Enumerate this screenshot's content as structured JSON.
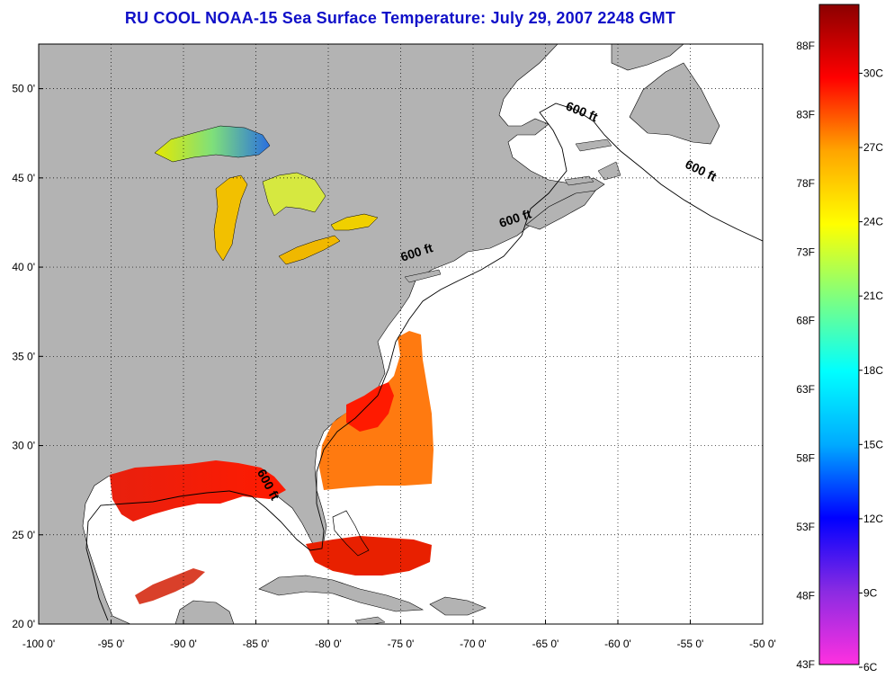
{
  "title": "RU COOL  NOAA-15  Sea Surface Temperature:  July 29, 2007 2248 GMT",
  "map": {
    "lon_range": [
      -100,
      -50
    ],
    "lat_range": [
      20,
      52.5
    ],
    "lon_ticks": [
      {
        "v": -100,
        "label": "-100 0'"
      },
      {
        "v": -95,
        "label": "-95 0'"
      },
      {
        "v": -90,
        "label": "-90 0'"
      },
      {
        "v": -85,
        "label": "-85 0'"
      },
      {
        "v": -80,
        "label": "-80 0'"
      },
      {
        "v": -75,
        "label": "-75 0'"
      },
      {
        "v": -70,
        "label": "-70 0'"
      },
      {
        "v": -65,
        "label": "-65 0'"
      },
      {
        "v": -60,
        "label": "-60 0'"
      },
      {
        "v": -55,
        "label": "-55 0'"
      },
      {
        "v": -50,
        "label": "-50 0'"
      }
    ],
    "lat_ticks": [
      {
        "v": 20,
        "label": "20 0'"
      },
      {
        "v": 25,
        "label": "25 0'"
      },
      {
        "v": 30,
        "label": "30 0'"
      },
      {
        "v": 35,
        "label": "35 0'"
      },
      {
        "v": 40,
        "label": "40 0'"
      },
      {
        "v": 45,
        "label": "45 0'"
      },
      {
        "v": 50,
        "label": "50 0'"
      }
    ],
    "isobath_labels": [
      {
        "text": "600 ft",
        "lon": -62.6,
        "lat": 48.5,
        "rot": 22
      },
      {
        "text": "600 ft",
        "lon": -54.4,
        "lat": 45.2,
        "rot": 26
      },
      {
        "text": "600 ft",
        "lon": -67.0,
        "lat": 42.5,
        "rot": -18
      },
      {
        "text": "600 ft",
        "lon": -73.8,
        "lat": 40.6,
        "rot": -18
      },
      {
        "text": "600 ft",
        "lon": -84.4,
        "lat": 27.7,
        "rot": 62
      }
    ],
    "colors": {
      "land": "#b3b3b3",
      "water": "#ffffff",
      "grid": "#000000",
      "title": "#1010c8"
    }
  },
  "colorbar": {
    "f_labels": [
      {
        "t": 43,
        "label": "43F"
      },
      {
        "t": 48,
        "label": "48F"
      },
      {
        "t": 53,
        "label": "53F"
      },
      {
        "t": 58,
        "label": "58F"
      },
      {
        "t": 63,
        "label": "63F"
      },
      {
        "t": 68,
        "label": "68F"
      },
      {
        "t": 73,
        "label": "73F"
      },
      {
        "t": 78,
        "label": "78F"
      },
      {
        "t": 83,
        "label": "83F"
      },
      {
        "t": 88,
        "label": "88F"
      }
    ],
    "c_labels": [
      {
        "t": 6,
        "label": "6C"
      },
      {
        "t": 9,
        "label": "9C"
      },
      {
        "t": 12,
        "label": "12C"
      },
      {
        "t": 15,
        "label": "15C"
      },
      {
        "t": 18,
        "label": "18C"
      },
      {
        "t": 21,
        "label": "21C"
      },
      {
        "t": 24,
        "label": "24C"
      },
      {
        "t": 27,
        "label": "27C"
      },
      {
        "t": 30,
        "label": "30C"
      }
    ],
    "range_f": [
      43,
      91
    ],
    "gradient": [
      "#ff30e0",
      "#8a2be2",
      "#0000ff",
      "#00aaff",
      "#00ffff",
      "#7fff7f",
      "#ffff00",
      "#ffa500",
      "#ff0000",
      "#8b0000"
    ]
  }
}
